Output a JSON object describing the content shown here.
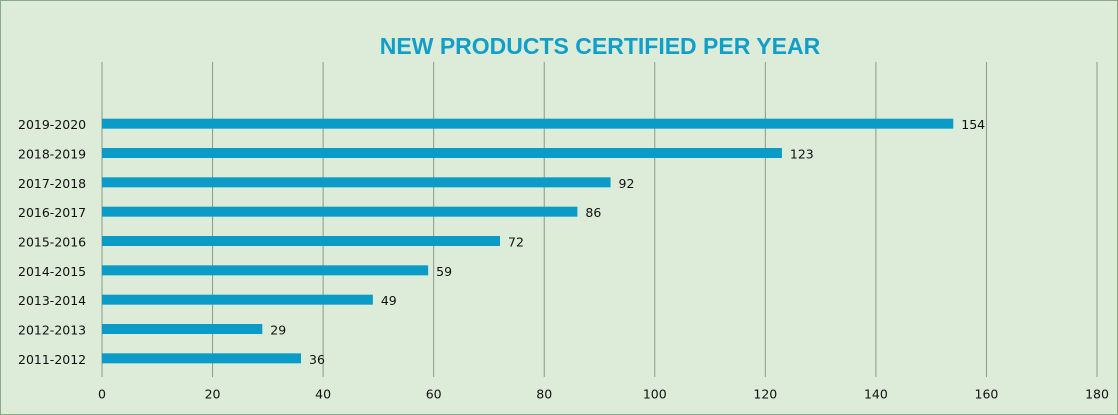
{
  "chart_data": {
    "type": "barh",
    "title": "NEW PRODUCTS CERTIFIED PER YEAR",
    "categories": [
      "2019-2020",
      "2018-2019",
      "2017-2018",
      "2016-2017",
      "2015-2016",
      "2014-2015",
      "2013-2014",
      "2012-2013",
      "2011-2012"
    ],
    "values": [
      154,
      123,
      92,
      86,
      72,
      59,
      49,
      29,
      36
    ],
    "color": "#0a9cc6",
    "xlim": [
      0,
      180
    ],
    "xticks": [
      0,
      20,
      40,
      60,
      80,
      100,
      120,
      140,
      160,
      180
    ],
    "grid": true
  }
}
